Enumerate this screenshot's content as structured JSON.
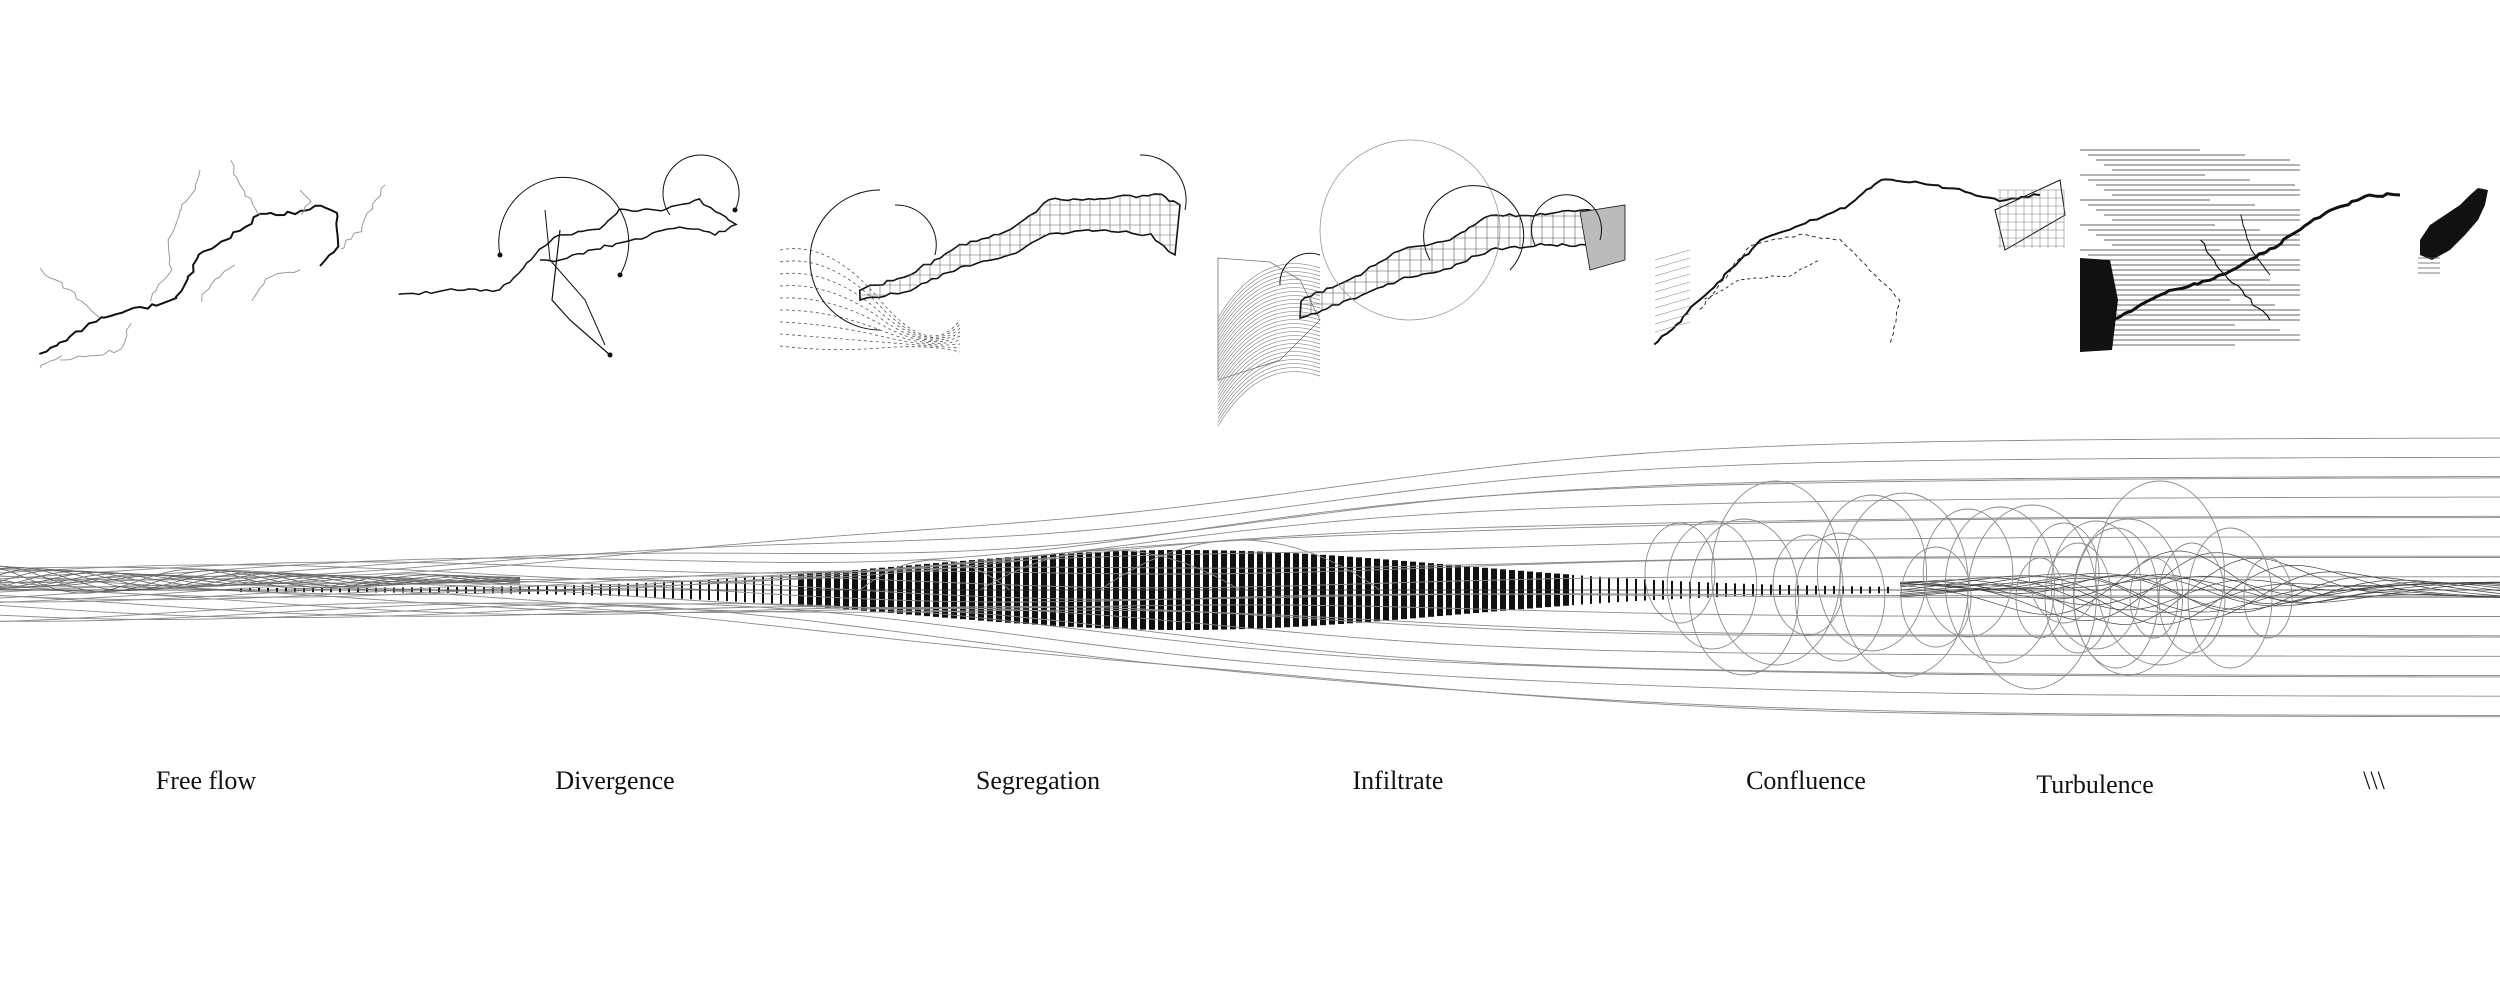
{
  "stages": [
    {
      "id": "free-flow",
      "label": "Free flow"
    },
    {
      "id": "divergence",
      "label": "Divergence"
    },
    {
      "id": "segregation",
      "label": "Segregation"
    },
    {
      "id": "infiltrate",
      "label": "Infiltrate"
    },
    {
      "id": "confluence",
      "label": "Confluence"
    },
    {
      "id": "turbulence",
      "label": "Turbulence"
    },
    {
      "id": "end",
      "label": "\\\\\\"
    }
  ],
  "colors": {
    "ink": "#111111",
    "line": "#8a8a8a",
    "background": "#ffffff"
  }
}
